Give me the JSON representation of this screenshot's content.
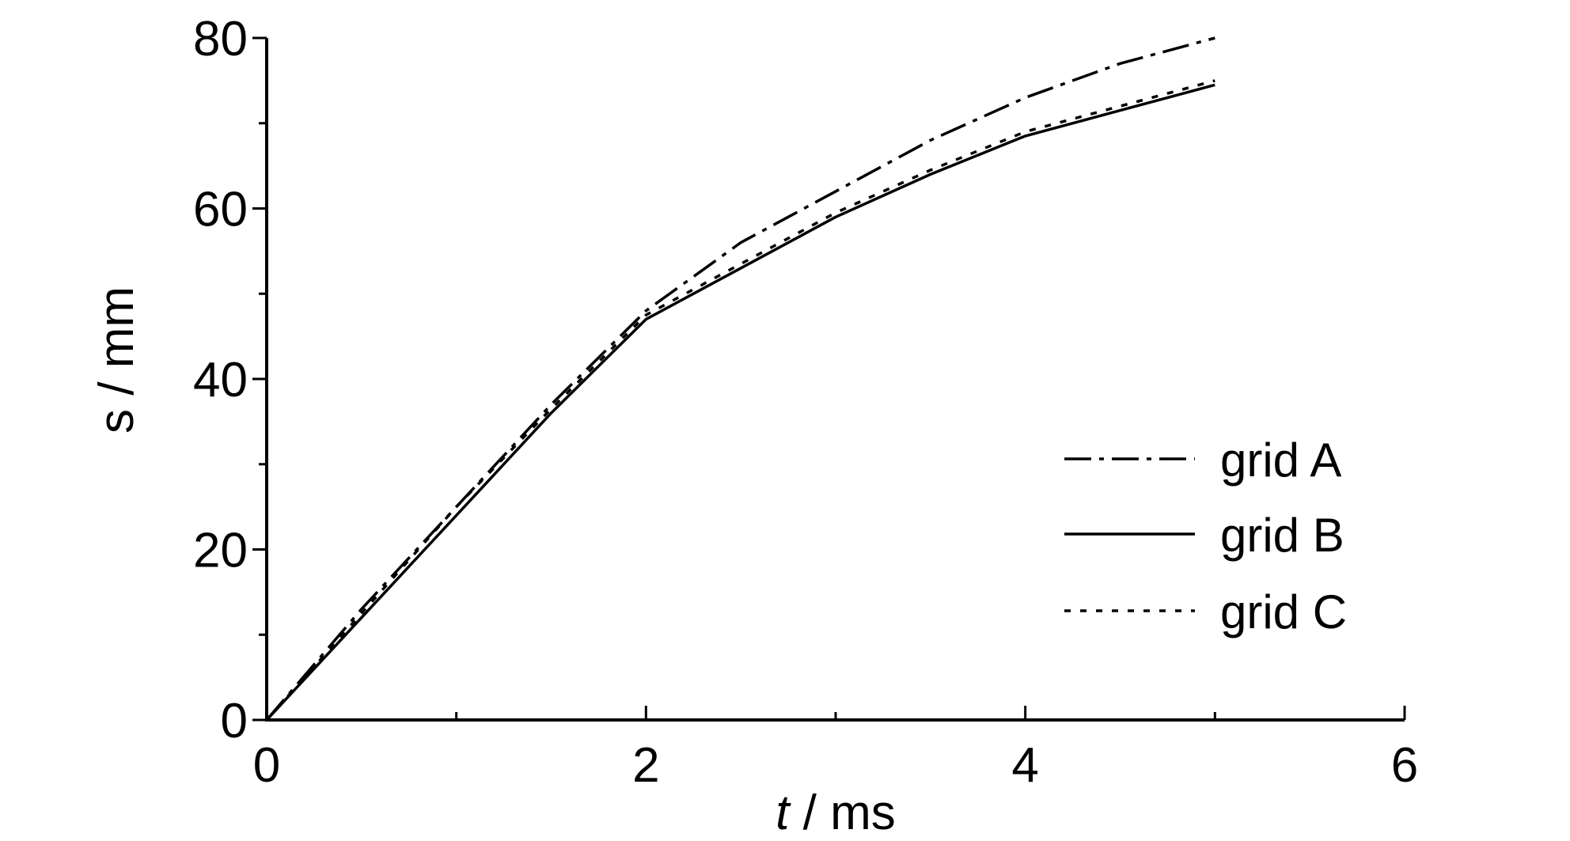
{
  "chart_data": {
    "type": "line",
    "xlabel_italic": "t",
    "xlabel_rest": " / ms",
    "ylabel": "s / mm",
    "xlim": [
      0,
      6
    ],
    "ylim": [
      0,
      80
    ],
    "x_ticks": [
      "0",
      "2",
      "4",
      "6"
    ],
    "y_ticks": [
      "0",
      "20",
      "40",
      "60",
      "80"
    ],
    "grid": false,
    "legend_position": "bottom-right",
    "series": [
      {
        "name": "grid A",
        "style": "dash-dot",
        "x": [
          0,
          0.5,
          1.0,
          1.5,
          2.0,
          2.5,
          3.0,
          3.5,
          4.0,
          4.5,
          5.0
        ],
        "y": [
          0,
          13,
          25,
          37,
          48,
          56,
          62,
          68,
          73,
          77,
          80
        ]
      },
      {
        "name": "grid B",
        "style": "solid",
        "x": [
          0,
          0.5,
          1.0,
          1.5,
          2.0,
          2.5,
          3.0,
          3.5,
          4.0,
          4.5,
          5.0
        ],
        "y": [
          0,
          12,
          24,
          36,
          47,
          53,
          59,
          64,
          68.5,
          71.5,
          74.5
        ]
      },
      {
        "name": "grid C",
        "style": "dotted",
        "x": [
          0,
          0.5,
          1.0,
          1.5,
          2.0,
          2.5,
          3.0,
          3.5,
          4.0,
          4.5,
          5.0
        ],
        "y": [
          0,
          12.5,
          25,
          36.5,
          47.5,
          53.5,
          59.5,
          64.5,
          69,
          72,
          75
        ]
      }
    ]
  }
}
